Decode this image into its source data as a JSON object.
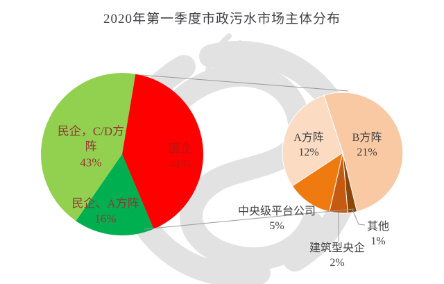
{
  "page": {
    "title": "2020年第一季度市政污水市场主体分布"
  },
  "colors": {
    "background": "#FFFFFF",
    "title_text": "#3F3F46",
    "left_pie_label_text": "#943634",
    "guoqi_label_text": "#BE1410",
    "right_pie_label_text": "#404040",
    "connector_line": "#999999",
    "watermark": "#C6C6C6"
  },
  "chart_data": [
    {
      "type": "pie",
      "name": "primary-pie-market-structure",
      "title": "2020年第一季度市政污水市场主体分布",
      "center": [
        176,
        222
      ],
      "radius": 117,
      "start_angle_deg": 9.5,
      "legend_position": "none",
      "slices": [
        {
          "label": "国企",
          "value": 41,
          "pct": "41%",
          "color": "#FE0000"
        },
        {
          "label": "民企、A方阵",
          "value": 16,
          "pct": "16%",
          "color": "#00B050"
        },
        {
          "label": "民企，C/D方阵",
          "value": 43,
          "pct": "43%",
          "color": "#92D050"
        }
      ]
    },
    {
      "type": "pie",
      "name": "secondary-pie-soe-breakdown",
      "center": [
        494,
        220
      ],
      "radius": 87,
      "start_angle_deg": 342,
      "slice_stroke": "#FFFFFF",
      "legend_position": "none",
      "slices": [
        {
          "label": "B方阵",
          "value": 21,
          "pct": "21%",
          "color": "#F8C9A3"
        },
        {
          "label": "其他",
          "value": 1,
          "pct": "1%",
          "color": "#8C4708"
        },
        {
          "label": "建筑型央企",
          "value": 2,
          "pct": "2%",
          "color": "#C55A11"
        },
        {
          "label": "中央级平台公司",
          "value": 5,
          "pct": "5%",
          "color": "#EE7A10"
        },
        {
          "label": "A方阵",
          "value": 12,
          "pct": "12%",
          "color": "#FBDCC3"
        }
      ]
    }
  ]
}
